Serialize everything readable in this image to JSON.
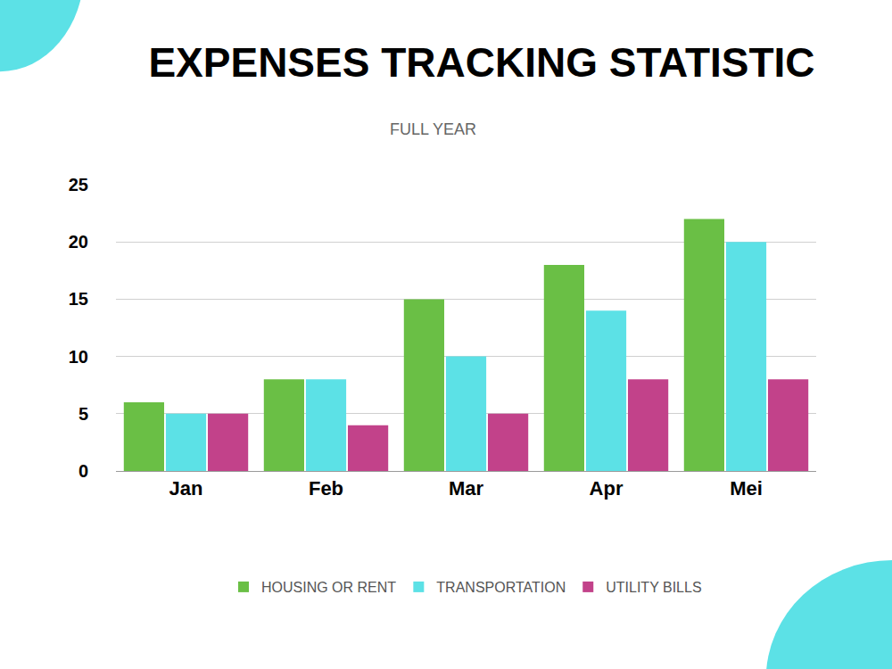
{
  "chart_data": {
    "type": "bar",
    "title": "EXPENSES TRACKING STATISTIC",
    "subtitle": "FULL YEAR",
    "categories": [
      "Jan",
      "Feb",
      "Mar",
      "Apr",
      "Mei"
    ],
    "series": [
      {
        "name": "HOUSING OR RENT",
        "color": "#6abf45",
        "values": [
          6,
          8,
          15,
          18,
          22
        ]
      },
      {
        "name": "TRANSPORTATION",
        "color": "#5ce1e6",
        "values": [
          5,
          8,
          10,
          14,
          20
        ]
      },
      {
        "name": "UTILITY BILLS",
        "color": "#c2428a",
        "values": [
          5,
          4,
          5,
          8,
          8
        ]
      }
    ],
    "ylim": [
      0,
      25
    ],
    "yticks": [
      0,
      5,
      10,
      15,
      20,
      25
    ],
    "grid": true,
    "legend": "bottom"
  }
}
